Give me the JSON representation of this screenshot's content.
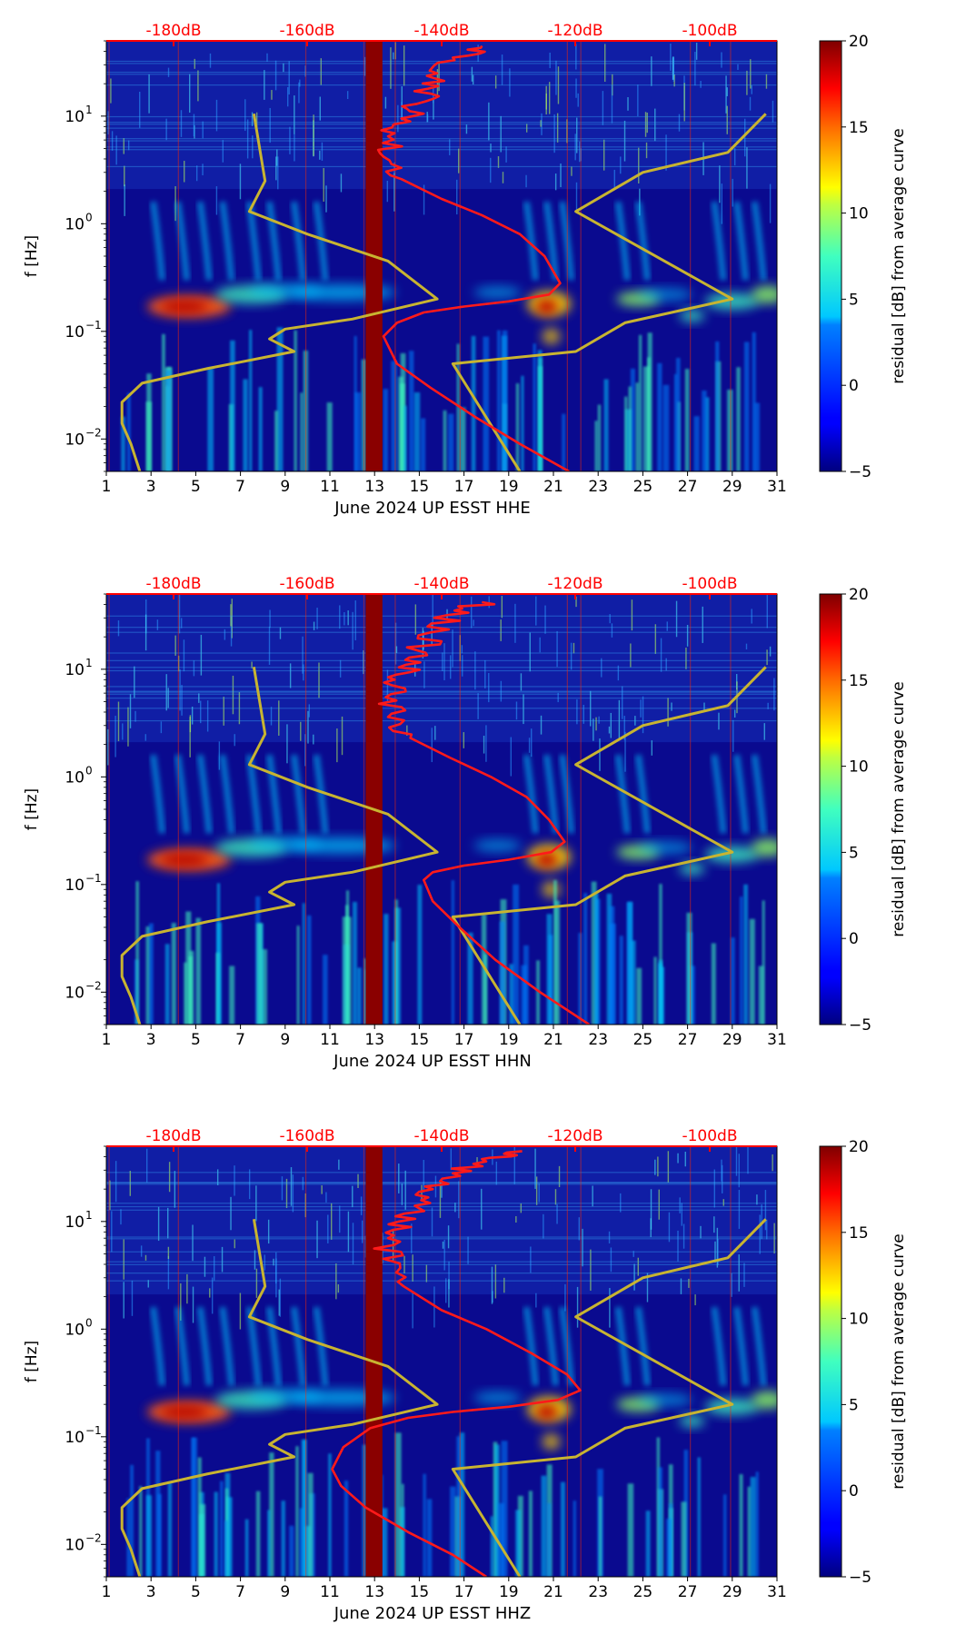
{
  "colors": {
    "red_curve": "#ff1a1a",
    "model_curve": "#c8b431",
    "top_axis": "#ff0000",
    "background_field": "#0a0a8f"
  },
  "colorbar": {
    "label": "residual [dB] from average curve",
    "range": [
      -5,
      20
    ],
    "ticks": [
      "20",
      "15",
      "10",
      "5",
      "0",
      "−5"
    ]
  },
  "chart_data": [
    {
      "type": "heatmap",
      "xlabel": "June 2024 UP ESST  HHE",
      "ylabel": "f [Hz]",
      "xlim": [
        1,
        31
      ],
      "ylim": [
        0.005,
        50
      ],
      "yscale": "log",
      "x_tick_labels": [
        "1",
        "3",
        "5",
        "7",
        "9",
        "11",
        "13",
        "15",
        "17",
        "19",
        "21",
        "23",
        "25",
        "27",
        "29",
        "31"
      ],
      "y_tick_labels": [
        {
          "base": "10",
          "exp": "1"
        },
        {
          "base": "10",
          "exp": "0"
        },
        {
          "base": "10",
          "exp": "−1"
        },
        {
          "base": "10",
          "exp": "−2"
        }
      ],
      "top_axis_labels": [
        "-180dB",
        "-160dB",
        "-140dB",
        "-120dB",
        "-100dB"
      ],
      "red_curve": {
        "x": [
          17.8,
          16.5,
          15.8,
          15.4,
          14.9,
          14.2,
          13.6,
          13.4,
          14.2,
          16.0,
          17.8,
          19.5,
          20.6,
          21.3,
          20.8,
          19.0,
          17.0,
          15.2,
          14.0,
          13.4,
          14.0,
          15.5,
          17.5,
          19.5,
          21.7
        ],
        "f": [
          45,
          35,
          25,
          18,
          13,
          9.5,
          6.5,
          4.2,
          2.6,
          1.7,
          1.2,
          0.8,
          0.5,
          0.28,
          0.22,
          0.19,
          0.17,
          0.15,
          0.12,
          0.09,
          0.05,
          0.03,
          0.016,
          0.009,
          0.005
        ]
      },
      "model_curve": {
        "x": [
          2.5,
          2.1,
          1.7,
          1.7,
          2.6,
          5.5,
          9.4,
          8.3,
          9.0,
          12.0,
          15.8,
          13.6,
          10.0,
          7.4,
          8.1,
          7.6
        ],
        "f": [
          0.005,
          0.009,
          0.014,
          0.022,
          0.033,
          0.045,
          0.065,
          0.085,
          0.105,
          0.13,
          0.2,
          0.45,
          0.8,
          1.3,
          2.5,
          10.5
        ]
      },
      "model_curve_2": {
        "x": [
          19.5,
          16.5,
          22.0,
          24.2,
          29.0,
          22.0,
          25.0,
          28.8,
          30.5
        ],
        "f": [
          0.005,
          0.05,
          0.065,
          0.12,
          0.2,
          1.3,
          3.0,
          4.6,
          10.5
        ]
      }
    },
    {
      "type": "heatmap",
      "xlabel": "June 2024 UP ESST  HHN",
      "ylabel": "f [Hz]",
      "xlim": [
        1,
        31
      ],
      "ylim": [
        0.005,
        50
      ],
      "yscale": "log",
      "x_tick_labels": [
        "1",
        "3",
        "5",
        "7",
        "9",
        "11",
        "13",
        "15",
        "17",
        "19",
        "21",
        "23",
        "25",
        "27",
        "29",
        "31"
      ],
      "y_tick_labels": [
        {
          "base": "10",
          "exp": "1"
        },
        {
          "base": "10",
          "exp": "0"
        },
        {
          "base": "10",
          "exp": "−1"
        },
        {
          "base": "10",
          "exp": "−2"
        }
      ],
      "top_axis_labels": [
        "-180dB",
        "-160dB",
        "-140dB",
        "-120dB",
        "-100dB"
      ],
      "red_curve": {
        "x": [
          17.8,
          16.3,
          15.5,
          14.9,
          14.4,
          13.9,
          13.5,
          13.6,
          14.6,
          16.4,
          18.2,
          19.8,
          20.8,
          21.5,
          20.9,
          19.0,
          17.0,
          15.6,
          15.2,
          15.6,
          16.8,
          18.4,
          20.4,
          22.6
        ],
        "f": [
          42,
          32,
          22,
          15,
          11,
          8,
          5.5,
          3.6,
          2.3,
          1.5,
          1.0,
          0.65,
          0.4,
          0.25,
          0.2,
          0.17,
          0.15,
          0.13,
          0.11,
          0.07,
          0.04,
          0.02,
          0.01,
          0.005
        ]
      },
      "model_curve": {
        "x": [
          2.5,
          2.1,
          1.7,
          1.7,
          2.6,
          5.5,
          9.4,
          8.3,
          9.0,
          12.0,
          15.8,
          13.6,
          10.0,
          7.4,
          8.1,
          7.6
        ],
        "f": [
          0.005,
          0.009,
          0.014,
          0.022,
          0.033,
          0.045,
          0.065,
          0.085,
          0.105,
          0.13,
          0.2,
          0.45,
          0.8,
          1.3,
          2.5,
          10.5
        ]
      },
      "model_curve_2": {
        "x": [
          19.5,
          16.5,
          22.0,
          24.2,
          29.0,
          22.0,
          25.0,
          28.8,
          30.5
        ],
        "f": [
          0.005,
          0.05,
          0.065,
          0.12,
          0.2,
          1.3,
          3.0,
          4.6,
          10.5
        ]
      }
    },
    {
      "type": "heatmap",
      "xlabel": "June 2024 UP ESST  HHZ",
      "ylabel": "f [Hz]",
      "xlim": [
        1,
        31
      ],
      "ylim": [
        0.005,
        50
      ],
      "yscale": "log",
      "x_tick_labels": [
        "1",
        "3",
        "5",
        "7",
        "9",
        "11",
        "13",
        "15",
        "17",
        "19",
        "21",
        "23",
        "25",
        "27",
        "29",
        "31"
      ],
      "y_tick_labels": [
        {
          "base": "10",
          "exp": "1"
        },
        {
          "base": "10",
          "exp": "0"
        },
        {
          "base": "10",
          "exp": "−1"
        },
        {
          "base": "10",
          "exp": "−2"
        }
      ],
      "top_axis_labels": [
        "-180dB",
        "-160dB",
        "-140dB",
        "-120dB",
        "-100dB"
      ],
      "red_curve": {
        "x": [
          19.6,
          17.8,
          16.5,
          15.6,
          14.8,
          14.1,
          13.6,
          13.4,
          14.3,
          16.0,
          18.0,
          20.0,
          21.6,
          22.2,
          21.2,
          19.0,
          16.5,
          14.5,
          12.8,
          11.6,
          11.1,
          11.5,
          12.6,
          14.5,
          16.5,
          18.0
        ],
        "f": [
          45,
          38,
          28,
          20,
          14,
          10,
          7,
          4.5,
          2.5,
          1.5,
          1.0,
          0.6,
          0.38,
          0.27,
          0.22,
          0.19,
          0.17,
          0.15,
          0.12,
          0.08,
          0.05,
          0.035,
          0.022,
          0.013,
          0.008,
          0.005
        ]
      },
      "model_curve": {
        "x": [
          2.5,
          2.1,
          1.7,
          1.7,
          2.6,
          5.5,
          9.4,
          8.3,
          9.0,
          12.0,
          15.8,
          13.6,
          10.0,
          7.4,
          8.1,
          7.6
        ],
        "f": [
          0.005,
          0.009,
          0.014,
          0.022,
          0.033,
          0.045,
          0.065,
          0.085,
          0.105,
          0.13,
          0.2,
          0.45,
          0.8,
          1.3,
          2.5,
          10.5
        ]
      },
      "model_curve_2": {
        "x": [
          19.5,
          16.5,
          22.0,
          24.2,
          29.0,
          22.0,
          25.0,
          28.8,
          30.5
        ],
        "f": [
          0.005,
          0.05,
          0.065,
          0.12,
          0.2,
          1.3,
          3.0,
          4.6,
          10.5
        ]
      }
    }
  ]
}
